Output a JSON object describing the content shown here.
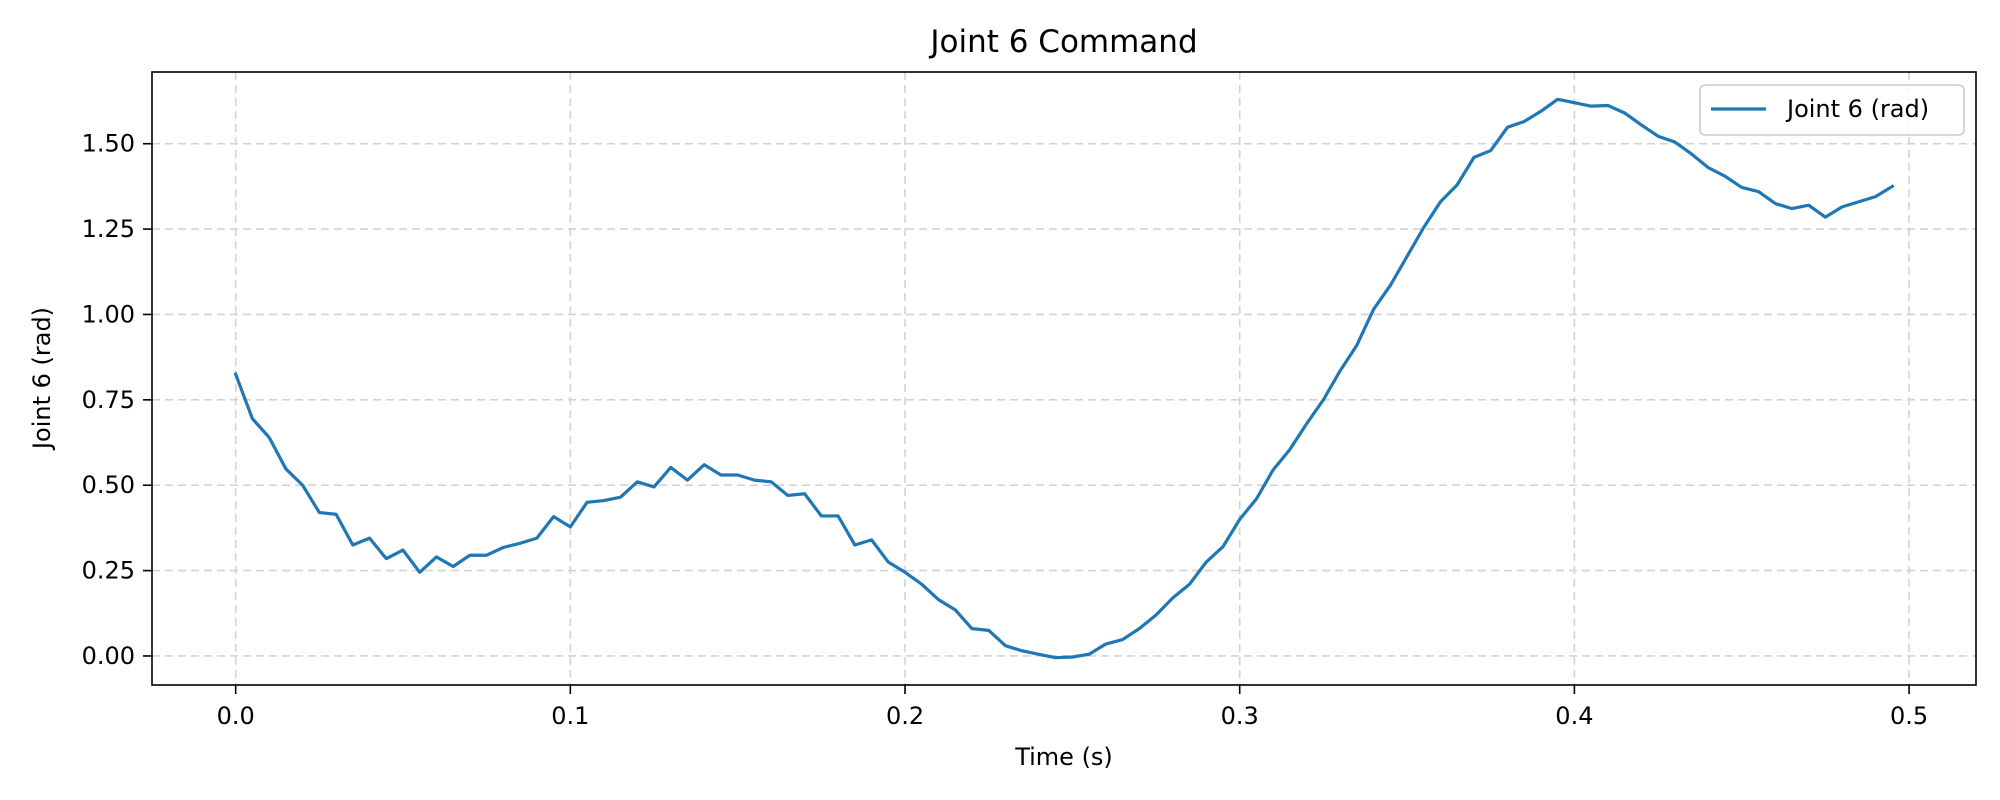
{
  "chart_data": {
    "type": "line",
    "title": "Joint 6 Command",
    "xlabel": "Time (s)",
    "ylabel": "Joint 6 (rad)",
    "xlim": [
      -0.025,
      0.52
    ],
    "ylim": [
      -0.085,
      1.71
    ],
    "xticks": [
      0.0,
      0.1,
      0.2,
      0.3,
      0.4,
      0.5
    ],
    "xtick_labels": [
      "0.0",
      "0.1",
      "0.2",
      "0.3",
      "0.4",
      "0.5"
    ],
    "yticks": [
      0.0,
      0.25,
      0.5,
      0.75,
      1.0,
      1.25,
      1.5
    ],
    "ytick_labels": [
      "0.00",
      "0.25",
      "0.50",
      "0.75",
      "1.00",
      "1.25",
      "1.50"
    ],
    "grid": true,
    "legend_position": "upper-right",
    "series": [
      {
        "name": "Joint 6 (rad)",
        "color": "#1f77b4",
        "x": [
          0.0,
          0.005,
          0.01,
          0.015,
          0.02,
          0.025,
          0.03,
          0.035,
          0.04,
          0.045,
          0.05,
          0.055,
          0.06,
          0.065,
          0.07,
          0.075,
          0.08,
          0.085,
          0.09,
          0.095,
          0.1,
          0.105,
          0.11,
          0.115,
          0.12,
          0.125,
          0.13,
          0.135,
          0.14,
          0.145,
          0.15,
          0.155,
          0.16,
          0.165,
          0.17,
          0.175,
          0.18,
          0.185,
          0.19,
          0.195,
          0.2,
          0.205,
          0.21,
          0.215,
          0.22,
          0.225,
          0.23,
          0.235,
          0.24,
          0.245,
          0.25,
          0.255,
          0.26,
          0.265,
          0.27,
          0.275,
          0.28,
          0.285,
          0.29,
          0.295,
          0.3,
          0.305,
          0.31,
          0.315,
          0.32,
          0.325,
          0.33,
          0.335,
          0.34,
          0.345,
          0.35,
          0.355,
          0.36,
          0.365,
          0.37,
          0.375,
          0.38,
          0.385,
          0.39,
          0.395,
          0.4,
          0.405,
          0.41,
          0.415,
          0.42,
          0.425,
          0.43,
          0.435,
          0.44,
          0.445,
          0.45,
          0.455,
          0.46,
          0.465,
          0.47,
          0.475,
          0.48,
          0.485,
          0.49,
          0.495
        ],
        "y": [
          0.825,
          0.695,
          0.64,
          0.548,
          0.5,
          0.42,
          0.415,
          0.325,
          0.345,
          0.285,
          0.31,
          0.245,
          0.29,
          0.262,
          0.295,
          0.295,
          0.318,
          0.33,
          0.345,
          0.408,
          0.378,
          0.45,
          0.455,
          0.465,
          0.51,
          0.495,
          0.552,
          0.515,
          0.56,
          0.53,
          0.53,
          0.515,
          0.51,
          0.47,
          0.475,
          0.41,
          0.41,
          0.325,
          0.34,
          0.275,
          0.245,
          0.21,
          0.165,
          0.135,
          0.08,
          0.075,
          0.03,
          0.015,
          0.005,
          -0.005,
          -0.003,
          0.005,
          0.035,
          0.048,
          0.08,
          0.12,
          0.17,
          0.21,
          0.275,
          0.32,
          0.4,
          0.46,
          0.545,
          0.605,
          0.68,
          0.75,
          0.835,
          0.91,
          1.015,
          1.085,
          1.17,
          1.255,
          1.33,
          1.38,
          1.46,
          1.48,
          1.548,
          1.565,
          1.595,
          1.63,
          1.62,
          1.61,
          1.612,
          1.59,
          1.555,
          1.522,
          1.505,
          1.47,
          1.43,
          1.405,
          1.372,
          1.36,
          1.325,
          1.31,
          1.32,
          1.285,
          1.315,
          1.33,
          1.345,
          1.375
        ]
      }
    ]
  }
}
